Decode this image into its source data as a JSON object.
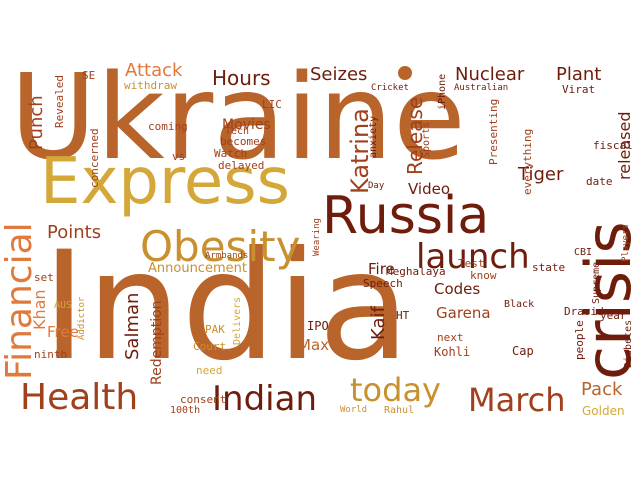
{
  "palette": {
    "dark_brown": "#6e1c0c",
    "rust": "#a0401c",
    "orange_brown": "#b8642a",
    "amber": "#c8902e",
    "gold": "#d4a838",
    "light_orange": "#e07a3c"
  },
  "words": [
    "Ukraine",
    "India",
    "Express",
    "Russia",
    "crisis",
    "Obesity",
    "Financial",
    "launch",
    "Health",
    "Indian",
    "today",
    "March",
    "Katrina",
    "Attack",
    "Hours",
    "Seizes",
    "Nuclear",
    "Plant",
    "Release",
    "released",
    "Tiger",
    "Video",
    "Fire",
    "Points",
    "Salman",
    "Kaif",
    "Punch",
    "Movies",
    "Announcement",
    "Redemption",
    "Codes",
    "Garena",
    "Khan",
    "Free",
    "Max",
    "Pack",
    "Golden",
    "consent",
    "100th",
    "Rahul",
    "World",
    "Court",
    "PAK",
    "need",
    "IPO",
    "Kohli",
    "next",
    "Cap",
    "Black",
    "Dravid",
    "year",
    "Diabetes",
    "Supreme",
    "Players",
    "people",
    "CBI",
    "fiscal",
    "Virat",
    "Australian",
    "Cricket",
    "anxiety",
    "Sports",
    "iPhone",
    "Presenting",
    "everything",
    "date",
    "state",
    "Test",
    "know",
    "Speech",
    "Meghalaya",
    "HT",
    "Delivers",
    "Armbands",
    "Tech",
    "becomes",
    "Watch",
    "delayed",
    "vs",
    "coming",
    "concerned",
    "Revealed",
    "SE",
    "withdraw",
    "LIC",
    "Day",
    "Wearing",
    "set",
    "AUS",
    "Addictor",
    "ninth"
  ]
}
